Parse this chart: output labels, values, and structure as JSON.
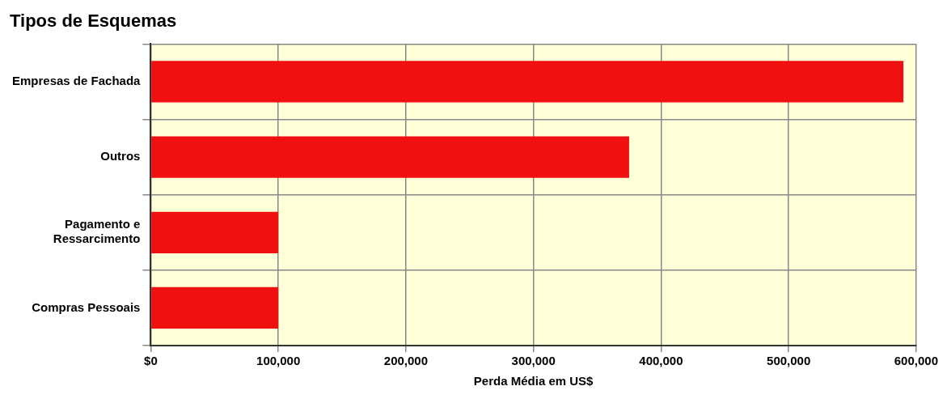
{
  "chart_data": {
    "type": "bar",
    "orientation": "horizontal",
    "title": "Tipos de Esquemas",
    "xlabel": "Perda Média em US$",
    "categories": [
      "Empresas de Fachada",
      "Outros",
      "Pagamento e Ressarcimento",
      "Compras Pessoais"
    ],
    "values": [
      590000,
      375000,
      100000,
      100000
    ],
    "color": "#f01010",
    "xlim": [
      0,
      600000
    ],
    "xticks": [
      {
        "value": 0,
        "label": "$0"
      },
      {
        "value": 100000,
        "label": "100,000"
      },
      {
        "value": 200000,
        "label": "200,000"
      },
      {
        "value": 300000,
        "label": "300,000"
      },
      {
        "value": 400000,
        "label": "400,000"
      },
      {
        "value": 500000,
        "label": "500,000"
      },
      {
        "value": 600000,
        "label": "600,000"
      }
    ],
    "grid": true
  }
}
